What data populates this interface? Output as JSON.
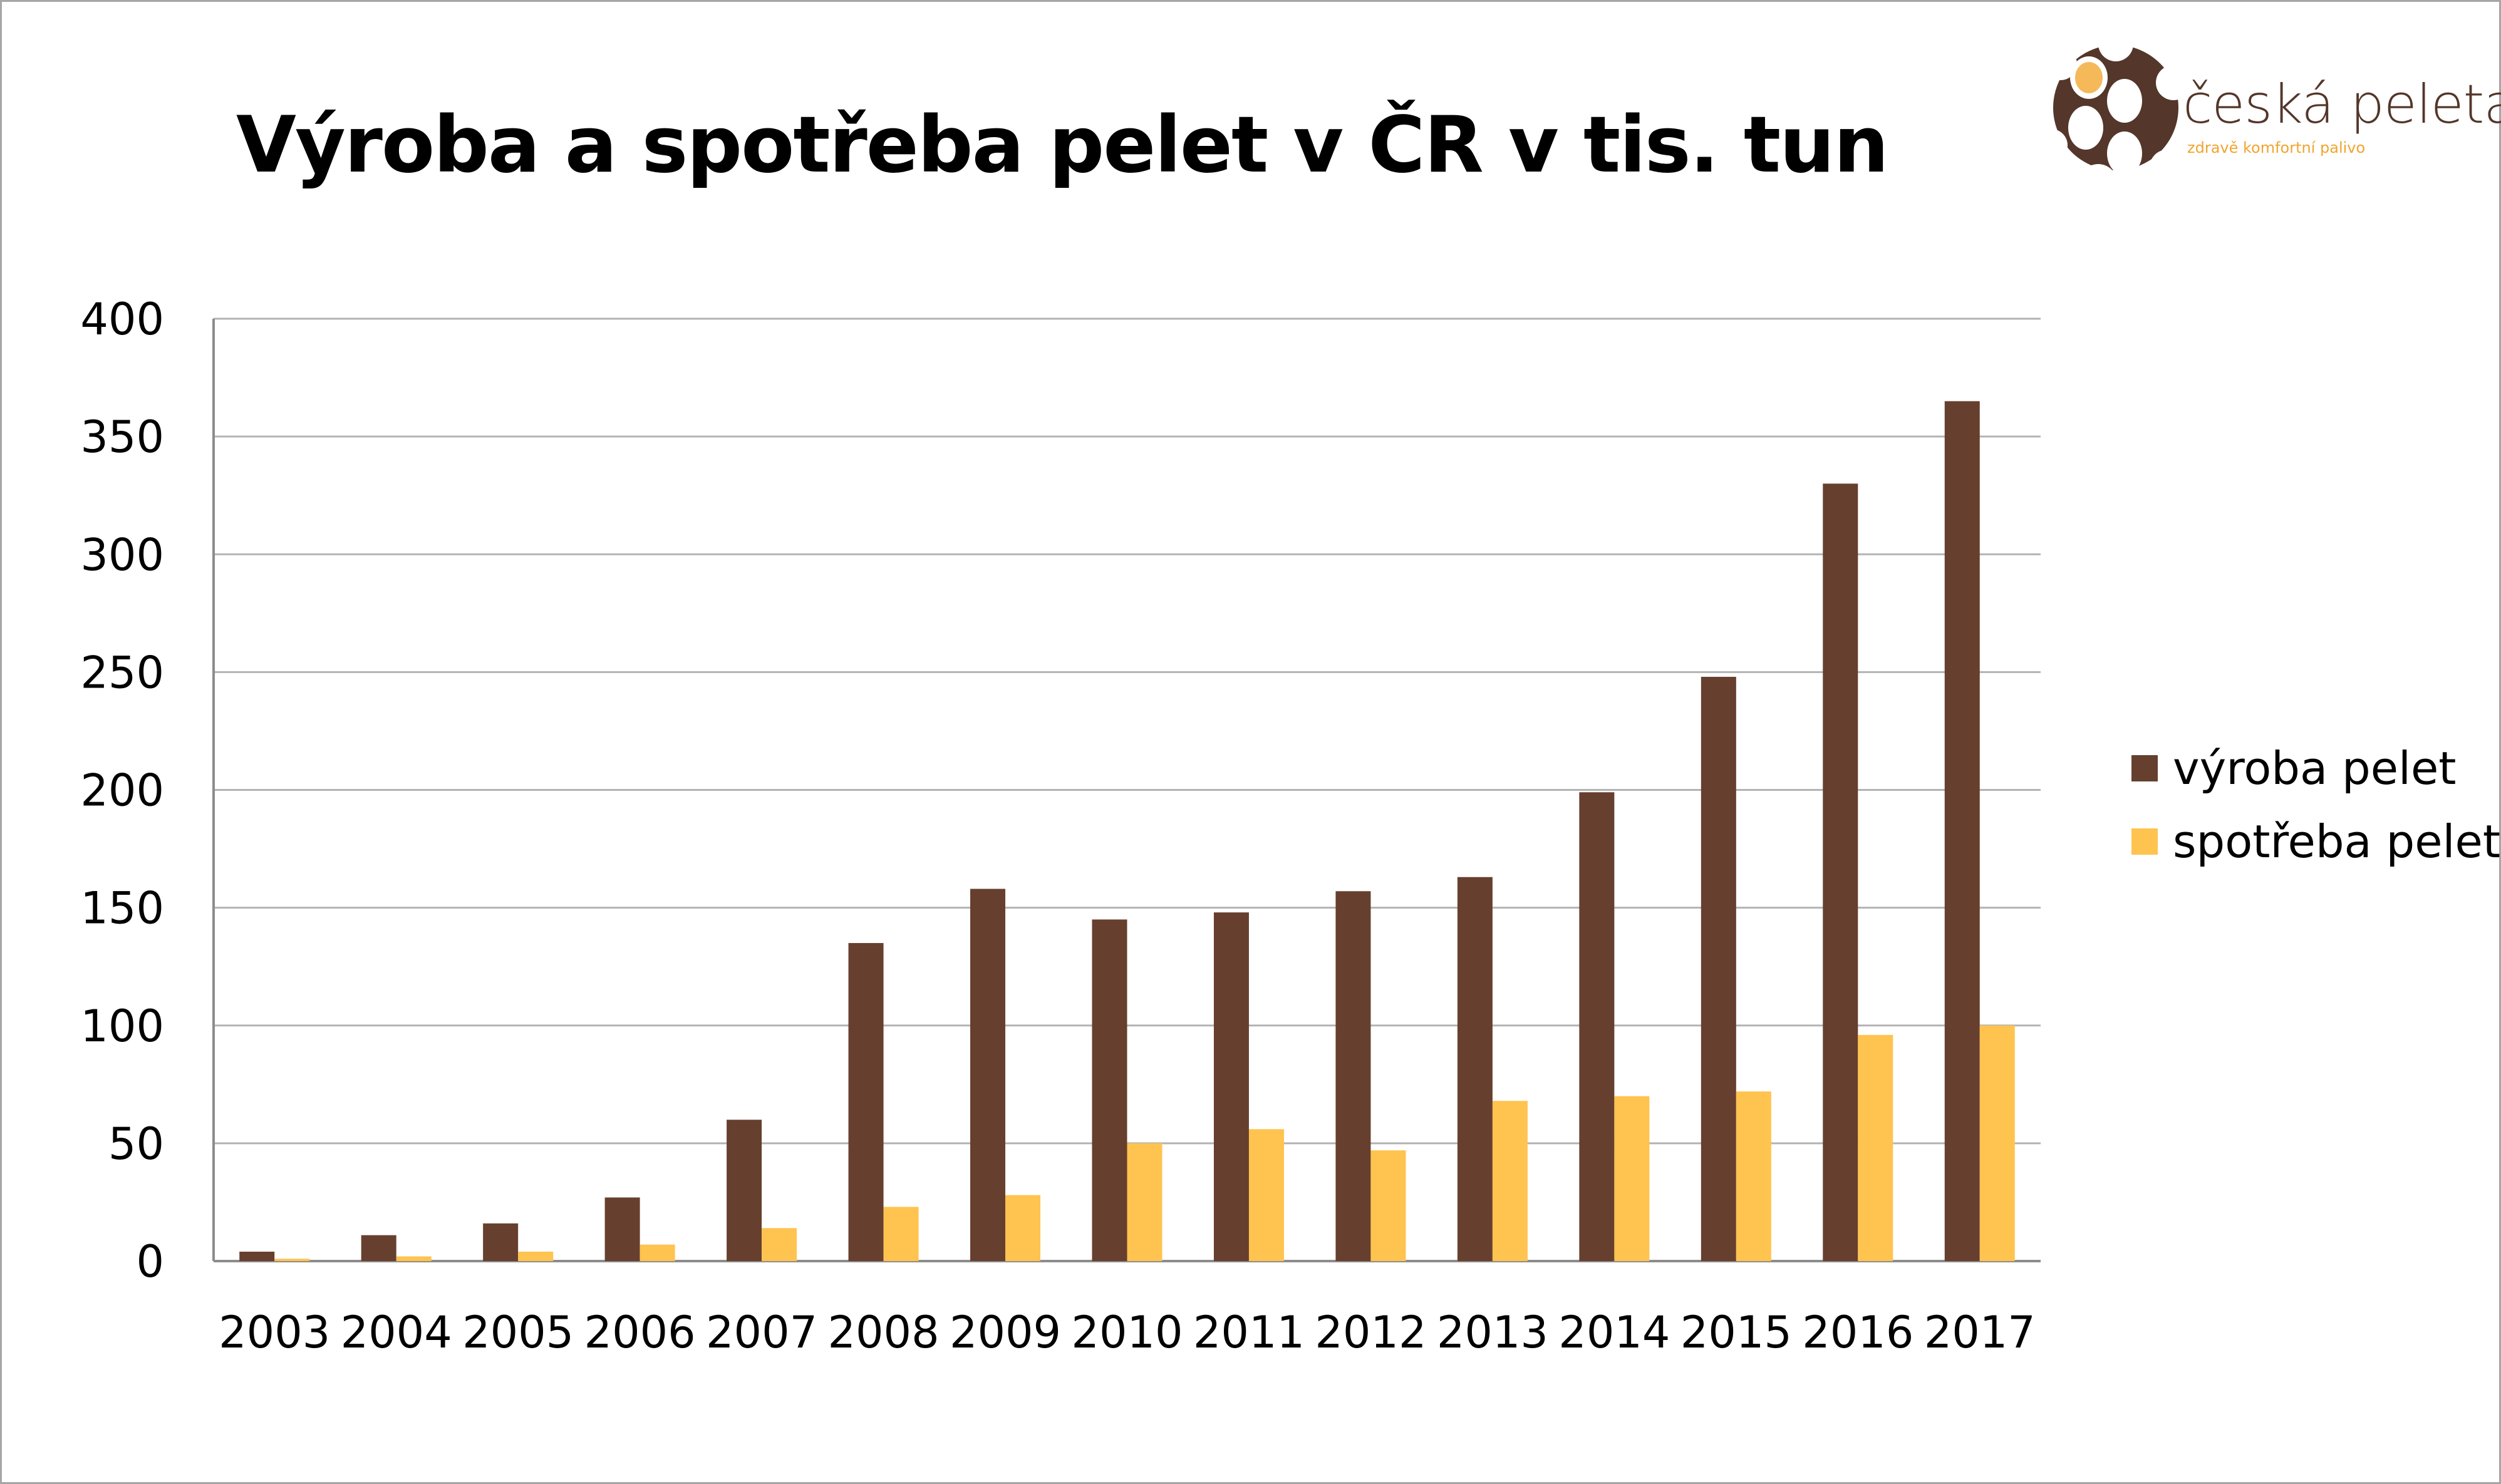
{
  "chart_data": {
    "type": "bar",
    "title": "Výroba a spotřeba pelet v ČR v tis. tun",
    "xlabel": "",
    "ylabel": "",
    "ylim": [
      0,
      400
    ],
    "yticks": [
      "0",
      "50",
      "100",
      "150",
      "200",
      "250",
      "300",
      "350",
      "400"
    ],
    "grid": true,
    "legend_position": "right",
    "categories": [
      "2003",
      "2004",
      "2005",
      "2006",
      "2007",
      "2008",
      "2009",
      "2010",
      "2011",
      "2012",
      "2013",
      "2014",
      "2015",
      "2016",
      "2017"
    ],
    "series": [
      {
        "name": "výroba pelet",
        "color": "#673f2e",
        "values": [
          4,
          11,
          16,
          27,
          60,
          135,
          158,
          145,
          148,
          157,
          163,
          199,
          248,
          330,
          365
        ]
      },
      {
        "name": "spotřeba pelet",
        "color": "#ffc34f",
        "values": [
          1,
          2,
          4,
          7,
          14,
          23,
          28,
          50,
          56,
          47,
          68,
          70,
          72,
          96,
          100
        ]
      }
    ]
  },
  "logo": {
    "name": "česká peleta",
    "tagline": "zdravě komfortní palivo",
    "brown": "#54362a",
    "orange": "#f5b95a"
  }
}
